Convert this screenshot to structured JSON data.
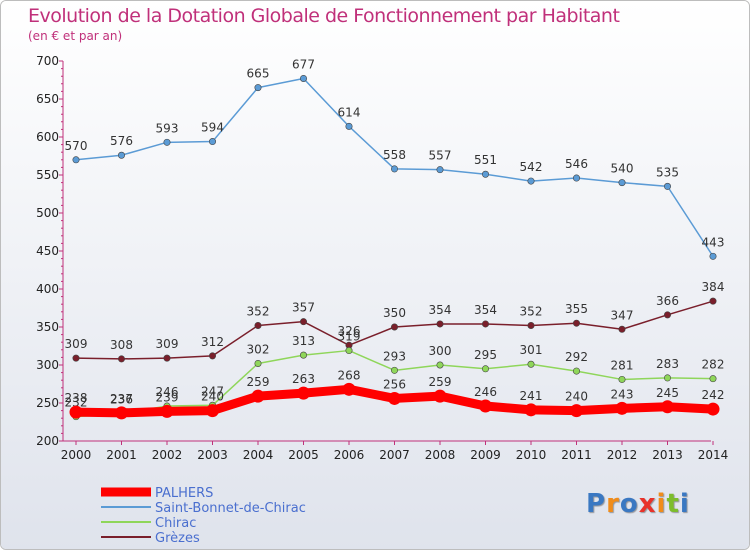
{
  "chart_data": {
    "type": "line",
    "title": "Evolution de la Dotation Globale de Fonctionnement par Habitant",
    "subtitle": "(en € et par an)",
    "x": [
      "2000",
      "2001",
      "2002",
      "2003",
      "2004",
      "2005",
      "2006",
      "2007",
      "2008",
      "2009",
      "2010",
      "2011",
      "2012",
      "2013",
      "2014"
    ],
    "ylim": [
      200,
      700
    ],
    "yticks": [
      200,
      250,
      300,
      350,
      400,
      450,
      500,
      550,
      600,
      650,
      700
    ],
    "grid": false,
    "legend": "bottom-left",
    "series": [
      {
        "name": "Saint-Bonnet-de-Chirac",
        "color": "#5b9bd5",
        "values": [
          570,
          576,
          593,
          594,
          665,
          677,
          614,
          558,
          557,
          551,
          542,
          546,
          540,
          535,
          443
        ]
      },
      {
        "name": "Grèzes",
        "color": "#7a1f2b",
        "values": [
          309,
          308,
          309,
          312,
          352,
          357,
          326,
          350,
          354,
          354,
          352,
          355,
          347,
          366,
          384
        ]
      },
      {
        "name": "Chirac",
        "color": "#8fd65a",
        "values": [
          232,
          236,
          246,
          247,
          302,
          313,
          319,
          293,
          300,
          295,
          301,
          292,
          281,
          283,
          282
        ]
      },
      {
        "name": "PALHERS",
        "color": "#ff0000",
        "values": [
          238,
          237,
          239,
          240,
          259,
          263,
          268,
          256,
          259,
          246,
          241,
          240,
          243,
          245,
          242
        ]
      }
    ]
  },
  "logo": {
    "letters": [
      "P",
      "r",
      "o",
      "x",
      "i",
      "t",
      "i"
    ],
    "colors": [
      "#3a78c2",
      "#f08c1a",
      "#3a78c2",
      "#e8322a",
      "#f08c1a",
      "#7dbd2c",
      "#3a78c2"
    ]
  }
}
